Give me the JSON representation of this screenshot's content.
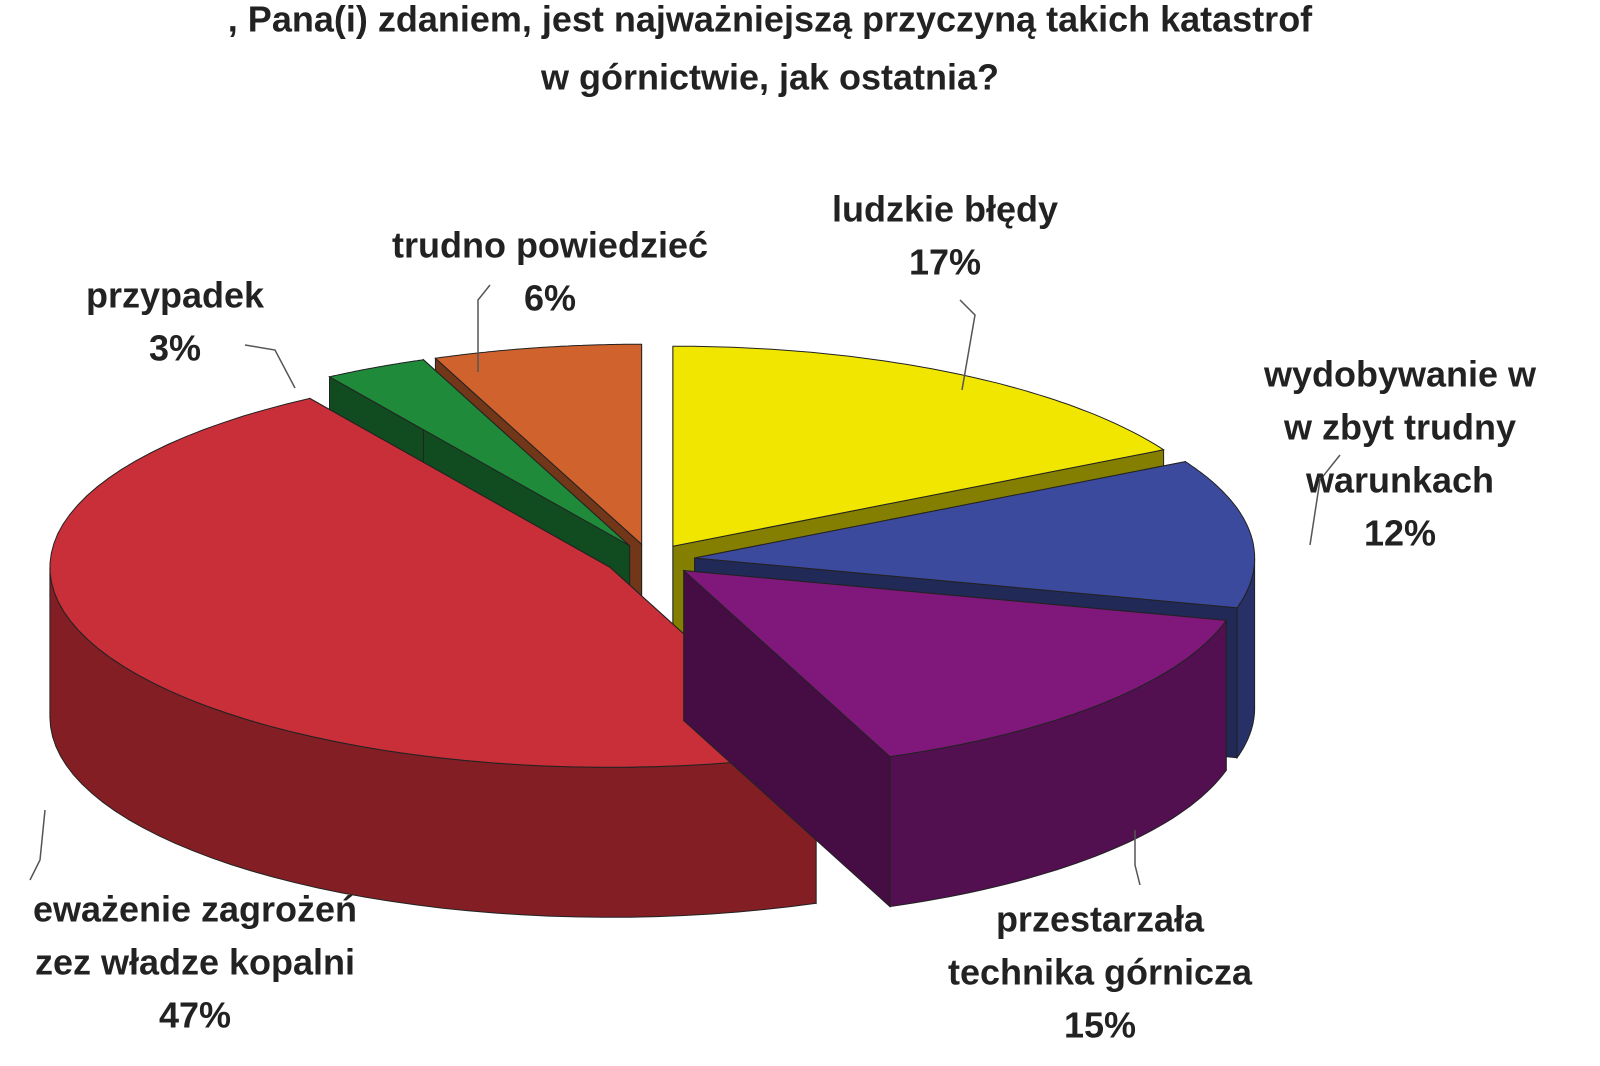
{
  "chart_data": {
    "type": "pie",
    "title": [
      ", Pana(i) zdaniem, jest najważniejszą przyczyną takich katastrof",
      "w górnictwie, jak ostatnia?"
    ],
    "categories": [
      [
        "ludzkie błędy"
      ],
      [
        "wydobywanie w",
        "w zbyt trudny",
        "warunkach"
      ],
      [
        "przestarzała",
        "technika górnicza"
      ],
      [
        "eważenie zagrożeń",
        "zez władze kopalni"
      ],
      [
        "przypadek"
      ],
      [
        "trudno powiedzieć"
      ]
    ],
    "values": [
      17,
      12,
      15,
      47,
      3,
      6
    ],
    "value_labels": [
      "17%",
      "12%",
      "15%",
      "47%",
      "3%",
      "6%"
    ],
    "colors": [
      "#f0e600",
      "#3c4a9e",
      "#80187c",
      "#c92f38",
      "#1f8a3a",
      "#d0622e"
    ]
  }
}
